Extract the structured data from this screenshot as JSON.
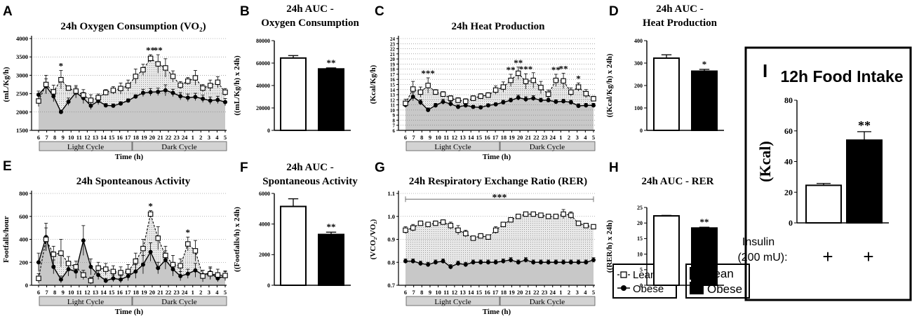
{
  "time_labels": [
    "6",
    "7",
    "8",
    "9",
    "10",
    "11",
    "12",
    "13",
    "14",
    "15",
    "16",
    "17",
    "18",
    "19",
    "20",
    "21",
    "22",
    "23",
    "24",
    "1",
    "2",
    "3",
    "4",
    "5"
  ],
  "cycle_labels": {
    "light": "Light Cycle",
    "dark": "Dark Cycle"
  },
  "time_axis_label": "Time (h)",
  "legend_lines": {
    "lean": "Lean",
    "obese": "Obese"
  },
  "legend_bars": {
    "lean": "Lean",
    "obese": "Obese"
  },
  "food_intake": {
    "letter": "I",
    "title": "12h Food Intake",
    "ylabel": "(Kcal)",
    "row_label_1": "Insulin",
    "row_label_2": "(200 mU):",
    "plus_1": "+",
    "plus_2": "+"
  },
  "chart_data": [
    {
      "id": "A",
      "letter": "A",
      "type": "line",
      "title": "24h Oxygen Consumption (VO₂)",
      "ylabel": "(mL/Kg/h)",
      "xlabel": "Time (h)",
      "ylim": [
        1500,
        4000
      ],
      "yticks": [
        "1500",
        "2000",
        "2500",
        "3000",
        "3500",
        "4000"
      ],
      "series": [
        {
          "name": "Lean",
          "values": [
            2300,
            2750,
            2550,
            2880,
            2650,
            2570,
            2460,
            2320,
            2390,
            2530,
            2590,
            2640,
            2720,
            2970,
            3150,
            3460,
            3310,
            3200,
            2970,
            2730,
            2840,
            2930,
            2650,
            2720,
            2810,
            2540
          ],
          "errors": [
            150,
            250,
            180,
            250,
            50,
            150,
            150,
            150,
            100,
            80,
            100,
            150,
            150,
            200,
            150,
            100,
            250,
            250,
            150,
            100,
            100,
            200,
            100,
            150,
            150,
            100
          ]
        },
        {
          "name": "Obese",
          "values": [
            2470,
            2700,
            2430,
            2000,
            2280,
            2530,
            2380,
            2170,
            2300,
            2180,
            2170,
            2230,
            2310,
            2420,
            2520,
            2540,
            2550,
            2590,
            2520,
            2430,
            2390,
            2410,
            2360,
            2310,
            2330,
            2270
          ],
          "errors": [
            100,
            200,
            150,
            50,
            100,
            150,
            150,
            100,
            100,
            50,
            50,
            50,
            50,
            50,
            100,
            100,
            100,
            150,
            100,
            100,
            100,
            100,
            100,
            100,
            100,
            100
          ]
        }
      ],
      "annotations": [
        {
          "text": "*",
          "point": 3
        },
        {
          "text": "**",
          "point": 15
        },
        {
          "text": "**",
          "point": 16
        }
      ]
    },
    {
      "id": "B",
      "letter": "B",
      "type": "bar",
      "title": "24h AUC -",
      "title2": "Oxygen Consumption",
      "ylabel": "((mL/Kg/h) x 24h)",
      "ylim": [
        0,
        80000
      ],
      "yticks": [
        "0",
        "20000",
        "40000",
        "60000",
        "80000"
      ],
      "categories": [
        "Lean",
        "Obese"
      ],
      "values": [
        64500,
        54800
      ],
      "errors": [
        2200,
        900
      ],
      "annotations": [
        {
          "text": "**",
          "bar": 1
        }
      ]
    },
    {
      "id": "C",
      "letter": "C",
      "type": "line",
      "title": "24h Heat Production",
      "ylabel": "(Kcal/Kg/h)",
      "xlabel": "Time (h)",
      "ylim": [
        6,
        24
      ],
      "yticks": [
        "6",
        "7",
        "8",
        "9",
        "10",
        "11",
        "12",
        "13",
        "14",
        "15",
        "16",
        "17",
        "18",
        "19",
        "20",
        "21",
        "22",
        "23",
        "24"
      ],
      "series": [
        {
          "name": "Lean",
          "values": [
            11.3,
            14.1,
            13.5,
            14.8,
            13.5,
            13.1,
            12.3,
            11.9,
            11.7,
            12.3,
            12.7,
            12.9,
            13.9,
            14.5,
            15.8,
            17.2,
            15.6,
            15.8,
            14.4,
            13.1,
            15.8,
            15.7,
            13.5,
            14.5,
            13.2,
            12.2
          ],
          "errors": [
            0.8,
            1.5,
            1.0,
            1.5,
            0.5,
            0.5,
            0.5,
            0.5,
            0.5,
            0.5,
            0.5,
            0.5,
            0.8,
            1.0,
            1.2,
            1.2,
            1.5,
            1.5,
            1.2,
            0.8,
            1.2,
            1.5,
            0.8,
            0.8,
            0.8,
            0.5
          ]
        },
        {
          "name": "Obese",
          "values": [
            11.0,
            12.6,
            11.5,
            10.0,
            10.9,
            11.6,
            11.2,
            10.6,
            10.9,
            10.6,
            10.5,
            10.9,
            11.1,
            11.5,
            11.9,
            12.4,
            12.1,
            12.3,
            11.9,
            11.9,
            11.6,
            11.7,
            11.5,
            10.8,
            10.9,
            10.9
          ],
          "errors": [
            0.5,
            0.8,
            0.5,
            0.4,
            0.4,
            0.5,
            0.5,
            0.4,
            0.4,
            0.3,
            0.3,
            0.3,
            0.3,
            0.4,
            0.4,
            0.5,
            0.5,
            0.5,
            0.4,
            0.4,
            0.4,
            0.4,
            0.4,
            0.4,
            0.4,
            0.4
          ]
        }
      ],
      "annotations": [
        {
          "text": "***",
          "point": 3
        },
        {
          "text": "**",
          "point": 14
        },
        {
          "text": "**",
          "point": 15
        },
        {
          "text": "***",
          "point": 16
        },
        {
          "text": "**",
          "point": 20
        },
        {
          "text": "**",
          "point": 21
        },
        {
          "text": "*",
          "point": 23
        }
      ]
    },
    {
      "id": "D",
      "letter": "D",
      "type": "bar",
      "title": "24h AUC -",
      "title2": "Heat Production",
      "ylabel": "((Kcal/Kg/h) x 24h)",
      "ylim": [
        0,
        400
      ],
      "yticks": [
        "0",
        "100",
        "200",
        "300",
        "400"
      ],
      "categories": [
        "Lean",
        "Obese"
      ],
      "values": [
        322,
        264
      ],
      "errors": [
        15,
        8
      ],
      "annotations": [
        {
          "text": "*",
          "bar": 1
        }
      ]
    },
    {
      "id": "E",
      "letter": "E",
      "type": "line",
      "title": "24h Sponteanous Activity",
      "ylabel": "Footfalls/hour",
      "xlabel": "Time (h)",
      "ylim": [
        0,
        800
      ],
      "yticks": [
        "0",
        "200",
        "400",
        "600",
        "800"
      ],
      "series": [
        {
          "name": "Lean",
          "values": [
            60,
            400,
            270,
            280,
            190,
            160,
            90,
            40,
            150,
            140,
            120,
            110,
            120,
            210,
            320,
            620,
            410,
            260,
            180,
            170,
            360,
            300,
            80,
            100,
            90,
            85
          ],
          "errors": [
            40,
            100,
            70,
            120,
            60,
            50,
            40,
            30,
            50,
            50,
            50,
            50,
            60,
            70,
            80,
            30,
            100,
            80,
            80,
            60,
            60,
            90,
            50,
            50,
            50,
            40
          ]
        },
        {
          "name": "Obese",
          "values": [
            200,
            420,
            160,
            50,
            140,
            120,
            390,
            160,
            90,
            40,
            60,
            50,
            80,
            120,
            180,
            290,
            150,
            220,
            140,
            80,
            100,
            130,
            90,
            110,
            60,
            80
          ],
          "errors": [
            80,
            120,
            60,
            30,
            60,
            60,
            130,
            70,
            40,
            20,
            30,
            30,
            40,
            60,
            80,
            80,
            50,
            80,
            60,
            40,
            40,
            60,
            40,
            50,
            30,
            40
          ]
        }
      ],
      "annotations": [
        {
          "text": "*",
          "point": 15
        },
        {
          "text": "*",
          "point": 20
        }
      ]
    },
    {
      "id": "F",
      "letter": "F",
      "type": "bar",
      "title": "24h AUC -",
      "title2": "Spontaneous Activity",
      "ylabel": "((Footfalls/h) x 24h)",
      "ylim": [
        0,
        6000
      ],
      "yticks": [
        "0",
        "2000",
        "4000",
        "6000"
      ],
      "categories": [
        "Lean",
        "Obese"
      ],
      "values": [
        5150,
        3320
      ],
      "errors": [
        500,
        150
      ],
      "annotations": [
        {
          "text": "**",
          "bar": 1
        }
      ]
    },
    {
      "id": "G",
      "letter": "G",
      "type": "line",
      "title": "24h Respiratory Exchange Ratio (RER)",
      "ylabel": "(VCO₂/VO₂)",
      "xlabel": "Time (h)",
      "ylim": [
        0.7,
        1.1
      ],
      "yticks": [
        "0.7",
        "0.8",
        "0.9",
        "1.0",
        "1.1"
      ],
      "series": [
        {
          "name": "Lean",
          "values": [
            0.94,
            0.95,
            0.97,
            0.965,
            0.97,
            0.975,
            0.96,
            0.94,
            0.925,
            0.905,
            0.915,
            0.91,
            0.94,
            0.965,
            0.985,
            1.0,
            1.01,
            1.01,
            1.005,
            1.0,
            1.0,
            1.01,
            1.005,
            0.97,
            0.96,
            0.955
          ],
          "errors": [
            0.015,
            0.015,
            0.01,
            0.01,
            0.01,
            0.01,
            0.015,
            0.02,
            0.015,
            0.01,
            0.01,
            0.01,
            0.015,
            0.01,
            0.01,
            0.005,
            0.005,
            0.005,
            0.005,
            0.005,
            0.005,
            0.02,
            0.015,
            0.01,
            0.01,
            0.005
          ]
        },
        {
          "name": "Obese",
          "values": [
            0.805,
            0.805,
            0.795,
            0.79,
            0.8,
            0.805,
            0.78,
            0.795,
            0.79,
            0.8,
            0.8,
            0.8,
            0.8,
            0.805,
            0.81,
            0.8,
            0.81,
            0.8,
            0.8,
            0.8,
            0.8,
            0.8,
            0.8,
            0.8,
            0.8,
            0.81
          ],
          "errors": [
            0.01,
            0.01,
            0.01,
            0.01,
            0.01,
            0.01,
            0.01,
            0.01,
            0.01,
            0.01,
            0.01,
            0.01,
            0.01,
            0.01,
            0.01,
            0.01,
            0.01,
            0.01,
            0.01,
            0.01,
            0.01,
            0.01,
            0.01,
            0.01,
            0.01,
            0.01
          ]
        }
      ],
      "annotations": [
        {
          "text": "***",
          "span": true
        }
      ]
    },
    {
      "id": "H",
      "letter": "H",
      "type": "bar",
      "title": "24h AUC - RER",
      "title2": "",
      "ylabel": "((RER/h) x 24h)",
      "ylim": [
        0,
        25
      ],
      "yticks": [
        "0",
        "5",
        "10",
        "15",
        "20",
        "25"
      ],
      "categories": [
        "Lean",
        "Obese"
      ],
      "values": [
        22.3,
        18.4
      ],
      "errors": [
        0.15,
        0.25
      ],
      "annotations": [
        {
          "text": "**",
          "bar": 1
        }
      ]
    },
    {
      "id": "I",
      "letter": "I",
      "type": "bar",
      "title": "12h Food Intake",
      "ylabel": "(Kcal)",
      "ylim": [
        0,
        80
      ],
      "yticks": [
        "0",
        "20",
        "40",
        "60",
        "80"
      ],
      "categories": [
        "Lean",
        "Obese"
      ],
      "values": [
        24.5,
        54
      ],
      "errors": [
        1.2,
        5.5
      ],
      "annotations": [
        {
          "text": "**",
          "bar": 1
        }
      ]
    }
  ]
}
